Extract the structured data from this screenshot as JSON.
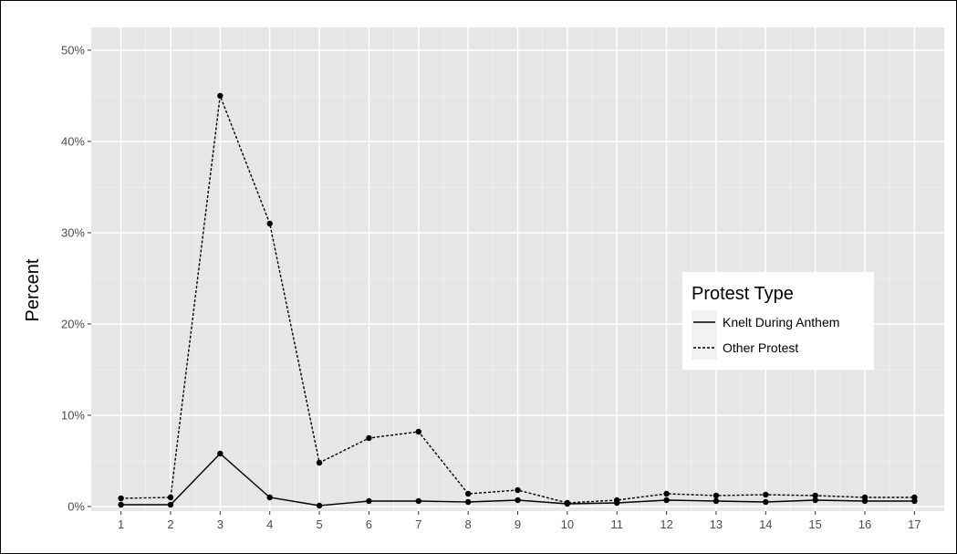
{
  "chart_data": {
    "type": "line",
    "title": "",
    "xlabel": "",
    "ylabel": "Percent",
    "x": [
      1,
      2,
      3,
      4,
      5,
      6,
      7,
      8,
      9,
      10,
      11,
      12,
      13,
      14,
      15,
      16,
      17
    ],
    "x_ticks": [
      "1",
      "2",
      "3",
      "4",
      "5",
      "6",
      "7",
      "8",
      "9",
      "10",
      "11",
      "12",
      "13",
      "14",
      "15",
      "16",
      "17"
    ],
    "y_ticks": [
      "0%",
      "10%",
      "20%",
      "30%",
      "40%",
      "50%"
    ],
    "y_tick_values": [
      0,
      10,
      20,
      30,
      40,
      50
    ],
    "xlim": [
      0.4,
      17.6
    ],
    "ylim": [
      -0.5,
      52.5
    ],
    "grid": true,
    "legend": {
      "title": "Protest Type",
      "placement": "right"
    },
    "series": [
      {
        "name": "Knelt During Anthem",
        "line_style": "solid",
        "values": [
          0.2,
          0.2,
          5.8,
          1.0,
          0.1,
          0.6,
          0.6,
          0.5,
          0.7,
          0.3,
          0.4,
          0.7,
          0.6,
          0.5,
          0.7,
          0.6,
          0.6
        ]
      },
      {
        "name": "Other Protest",
        "line_style": "dotted",
        "values": [
          0.9,
          1.0,
          45.0,
          31.0,
          4.8,
          7.5,
          8.2,
          1.4,
          1.8,
          0.4,
          0.7,
          1.4,
          1.2,
          1.3,
          1.2,
          1.0,
          1.0
        ]
      }
    ],
    "colors": {
      "panel_background": "#e6e6e6",
      "grid_major": "#ffffff",
      "grid_minor": "#f2f2f2",
      "line": "#000000",
      "axis_text": "#4d4d4d"
    }
  }
}
